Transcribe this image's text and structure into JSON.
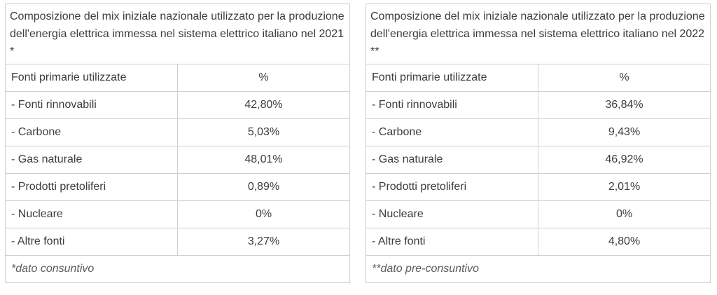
{
  "tables": [
    {
      "title": "Composizione del mix iniziale nazionale utilizzato per la produzione dell'energia elettrica immessa nel sistema elettrico italiano nel 2021 *",
      "header": {
        "source": "Fonti primarie utilizzate",
        "value": "%"
      },
      "rows": [
        {
          "source": "- Fonti rinnovabili",
          "value": "42,80%"
        },
        {
          "source": "- Carbone",
          "value": "5,03%"
        },
        {
          "source": "- Gas naturale",
          "value": "48,01%"
        },
        {
          "source": "- Prodotti pretoliferi",
          "value": "0,89%"
        },
        {
          "source": "- Nucleare",
          "value": "0%"
        },
        {
          "source": "- Altre fonti",
          "value": "3,27%"
        }
      ],
      "note": "*dato consuntivo"
    },
    {
      "title": "Composizione del mix iniziale nazionale utilizzato per la produzione dell'energia elettrica immessa nel sistema elettrico italiano nel 2022 **",
      "header": {
        "source": "Fonti primarie utilizzate",
        "value": "%"
      },
      "rows": [
        {
          "source": "- Fonti rinnovabili",
          "value": "36,84%"
        },
        {
          "source": "- Carbone",
          "value": "9,43%"
        },
        {
          "source": "- Gas naturale",
          "value": "46,92%"
        },
        {
          "source": "- Prodotti pretoliferi",
          "value": "2,01%"
        },
        {
          "source": "- Nucleare",
          "value": "0%"
        },
        {
          "source": "- Altre fonti",
          "value": "4,80%"
        }
      ],
      "note": "**dato pre-consuntivo"
    }
  ]
}
